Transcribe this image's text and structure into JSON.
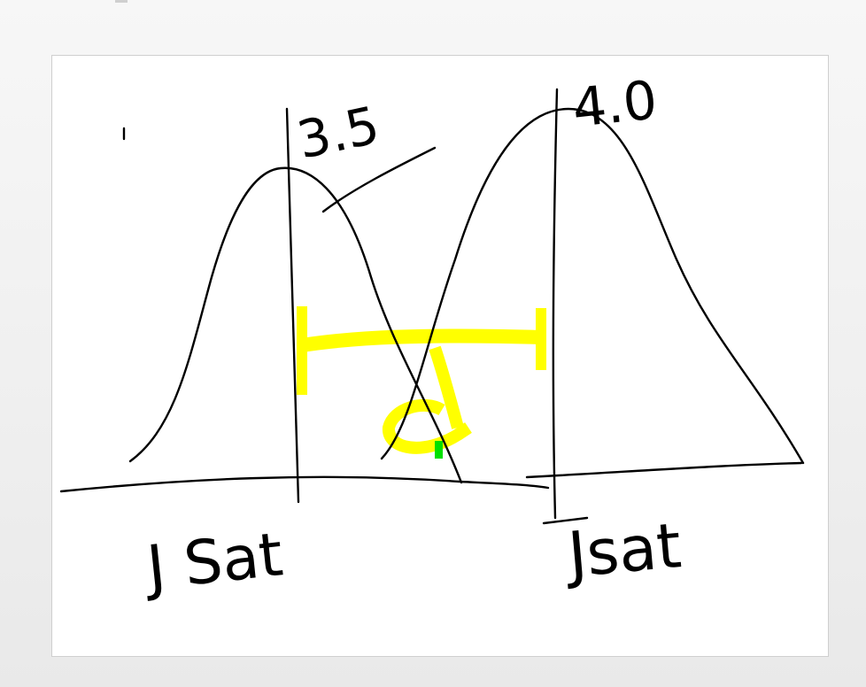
{
  "sketch": {
    "left_mean_label": "3.5",
    "right_mean_label": "4.0",
    "left_axis_label": "J Sat",
    "right_axis_label": "Jsat"
  },
  "colors": {
    "ink": "#000000",
    "highlight_yellow": "#ffff00",
    "marker_green": "#00e000",
    "canvas_background": "#ffffff"
  }
}
